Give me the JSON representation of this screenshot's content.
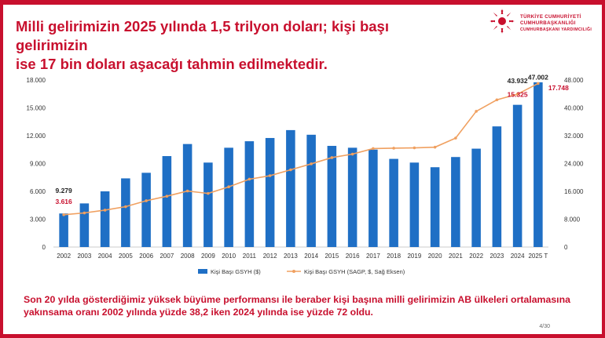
{
  "header": {
    "title_line1": "Milli gelirimizin 2025 yılında 1,5 trilyon doları; kişi başı gelirimizin",
    "title_line2": "ise 17 bin doları aşacağı tahmin edilmektedir.",
    "logo_line1": "TÜRKİYE CUMHURİYETİ",
    "logo_line2": "CUMHURBAŞKANLIĞI",
    "logo_line3": "CUMHURBAŞKANI YARDIMCILIĞI"
  },
  "footer": {
    "line1": "Son 20 yılda gösterdiğimiz yüksek büyüme performansı ile beraber kişi başına milli gelirimizin AB ülkeleri ortalamasına",
    "line2": "yakınsama oranı 2002 yılında yüzde 38,2 iken 2024 yılında ise yüzde 72 oldu.",
    "page": "4/30"
  },
  "colors": {
    "accent": "#c8102e",
    "bar": "#1f6fc5",
    "line": "#f0a060"
  },
  "chart_data": {
    "type": "bar",
    "categories": [
      "2002",
      "2003",
      "2004",
      "2005",
      "2006",
      "2007",
      "2008",
      "2009",
      "2010",
      "2011",
      "2012",
      "2013",
      "2014",
      "2015",
      "2016",
      "2017",
      "2018",
      "2019",
      "2020",
      "2021",
      "2022",
      "2023",
      "2024",
      "2025 T"
    ],
    "series": [
      {
        "name": "Kişi Başı GSYH ($)",
        "type": "bar",
        "axis": "left",
        "values": [
          3616,
          4700,
          6000,
          7400,
          8000,
          9800,
          11100,
          9100,
          10700,
          11400,
          11750,
          12600,
          12100,
          10900,
          10700,
          10500,
          9500,
          9100,
          8600,
          9700,
          10600,
          13000,
          15325,
          17748
        ]
      },
      {
        "name": "Kişi Başı GSYH (SAGP, $, Sağ Eksen)",
        "type": "line",
        "axis": "right",
        "values": [
          9279,
          9800,
          10600,
          11600,
          13300,
          14600,
          16100,
          15400,
          17300,
          19500,
          20500,
          22200,
          23900,
          25700,
          26700,
          28300,
          28400,
          28500,
          28700,
          31300,
          39000,
          42300,
          43932,
          47002
        ]
      }
    ],
    "left_axis": {
      "ylim": [
        0,
        18000
      ],
      "ticks": [
        "0",
        "3.000",
        "6.000",
        "9.000",
        "12.000",
        "15.000",
        "18.000"
      ]
    },
    "right_axis": {
      "ylim": [
        0,
        48000
      ],
      "ticks": [
        "0",
        "8.000",
        "16.000",
        "24.000",
        "32.000",
        "40.000",
        "48.000"
      ]
    },
    "data_labels": [
      {
        "text": "9.279",
        "index": 0,
        "series": 1,
        "color": "#222222"
      },
      {
        "text": "3.616",
        "index": 0,
        "series": 0,
        "color": "#c8102e"
      },
      {
        "text": "43.932",
        "index": 22,
        "series": 1,
        "color": "#222222"
      },
      {
        "text": "15.325",
        "index": 22,
        "series": 0,
        "color": "#c8102e"
      },
      {
        "text": "47.002",
        "index": 23,
        "series": 1,
        "color": "#222222"
      },
      {
        "text": "17.748",
        "index": 23,
        "series": 0,
        "color": "#c8102e"
      }
    ],
    "legend_position": "bottom"
  }
}
